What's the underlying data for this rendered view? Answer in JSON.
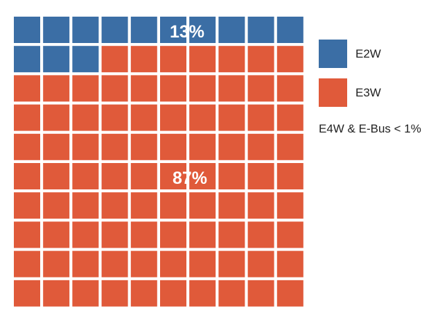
{
  "chart_data": {
    "type": "waffle",
    "grid": {
      "rows": 10,
      "cols": 10,
      "total": 100
    },
    "series": [
      {
        "name": "E2W",
        "value": 13,
        "label": "13%",
        "color": "#3b6ea5"
      },
      {
        "name": "E3W",
        "value": 87,
        "label": "87%",
        "color": "#e05a3a"
      }
    ],
    "legend_position": "right",
    "note": "E4W & E-Bus < 1%"
  }
}
